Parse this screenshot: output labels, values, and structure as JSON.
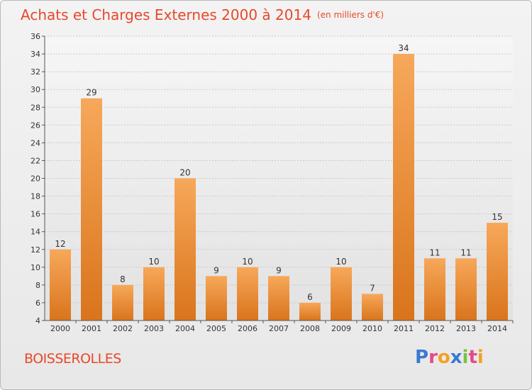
{
  "header": {
    "title": "Achats et Charges Externes 2000 à 2014",
    "subtitle": "(en milliers d'€)"
  },
  "footer": {
    "commune": "BOISSEROLLES",
    "logo_text": "Proxiti",
    "logo_colors": [
      "#3a7ad1",
      "#e34a8b",
      "#f2a125",
      "#3a7ad1",
      "#7cc242",
      "#e34a8b",
      "#f2a125"
    ]
  },
  "chart_data": {
    "type": "bar",
    "categories": [
      "2000",
      "2001",
      "2002",
      "2003",
      "2004",
      "2005",
      "2006",
      "2007",
      "2008",
      "2009",
      "2010",
      "2011",
      "2012",
      "2013",
      "2014"
    ],
    "values": [
      12,
      29,
      8,
      10,
      20,
      9,
      10,
      9,
      6,
      10,
      7,
      34,
      11,
      11,
      15
    ],
    "ylim": [
      4,
      36
    ],
    "yticks": [
      4,
      6,
      8,
      10,
      12,
      14,
      16,
      18,
      20,
      22,
      24,
      26,
      28,
      30,
      32,
      34,
      36
    ],
    "grid": true,
    "bar_color": "#f0953a"
  }
}
